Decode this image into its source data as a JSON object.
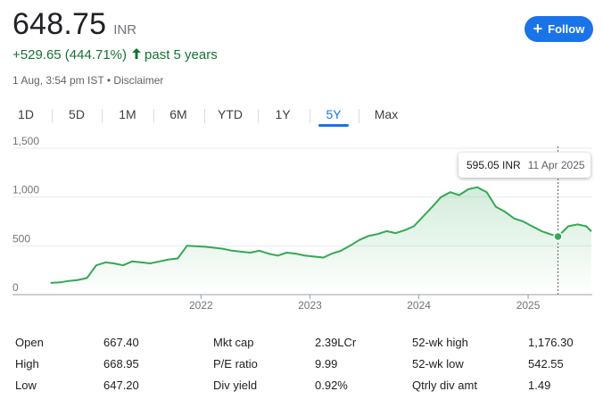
{
  "header": {
    "price": "648.75",
    "currency": "INR",
    "change": "+529.65 (444.71%)",
    "period": "past 5 years",
    "timestamp": "1 Aug, 3:54 pm IST",
    "separator": "•",
    "disclaimer": "Disclaimer",
    "follow_label": "Follow",
    "colors": {
      "positive": "#137333",
      "accent": "#1a73e8"
    }
  },
  "tabs": [
    {
      "label": "1D"
    },
    {
      "label": "5D"
    },
    {
      "label": "1M"
    },
    {
      "label": "6M"
    },
    {
      "label": "YTD"
    },
    {
      "label": "1Y"
    },
    {
      "label": "5Y",
      "active": true
    },
    {
      "label": "Max"
    }
  ],
  "tooltip": {
    "value": "595.05 INR",
    "date": "11 Apr 2025"
  },
  "chart_data": {
    "type": "line",
    "title": "",
    "xlabel": "",
    "ylabel": "",
    "x_ticks": [
      "2022",
      "2023",
      "2024",
      "2025"
    ],
    "y_ticks": [
      "0",
      "500",
      "1,000",
      "1,500"
    ],
    "ylim": [
      0,
      1500
    ],
    "xlim": [
      "2020-08-01",
      "2025-08-01"
    ],
    "grid": "horizontal",
    "line_color": "#34a853",
    "x": [
      "2020-08",
      "2020-09",
      "2020-10",
      "2020-11",
      "2020-12",
      "2021-01",
      "2021-02",
      "2021-03",
      "2021-04",
      "2021-05",
      "2021-06",
      "2021-07",
      "2021-08",
      "2021-09",
      "2021-10",
      "2021-11",
      "2022-01",
      "2022-02",
      "2022-03",
      "2022-04",
      "2022-05",
      "2022-06",
      "2022-07",
      "2022-08",
      "2022-09",
      "2022-10",
      "2022-11",
      "2022-12",
      "2023-01",
      "2023-02",
      "2023-03",
      "2023-04",
      "2023-05",
      "2023-06",
      "2023-07",
      "2023-08",
      "2023-09",
      "2023-10",
      "2023-11",
      "2023-12",
      "2024-01",
      "2024-02",
      "2024-03",
      "2024-04",
      "2024-05",
      "2024-06",
      "2024-07",
      "2024-08",
      "2024-09",
      "2024-10",
      "2024-11",
      "2024-12",
      "2025-01",
      "2025-02",
      "2025-03",
      "2025-04-11",
      "2025-05",
      "2025-06",
      "2025-07",
      "2025-08-01"
    ],
    "values": [
      120,
      125,
      140,
      150,
      170,
      300,
      330,
      320,
      300,
      340,
      330,
      320,
      340,
      360,
      370,
      500,
      490,
      480,
      470,
      450,
      440,
      430,
      450,
      420,
      400,
      430,
      420,
      400,
      390,
      380,
      420,
      450,
      500,
      560,
      600,
      620,
      650,
      630,
      660,
      700,
      800,
      900,
      1000,
      1050,
      1020,
      1080,
      1100,
      1050,
      900,
      850,
      780,
      750,
      700,
      650,
      620,
      595.05,
      700,
      720,
      700,
      648.75
    ],
    "highlight": {
      "x": "2025-04-11",
      "value": 595.05
    }
  },
  "stats": {
    "col1": [
      {
        "label": "Open",
        "value": "667.40"
      },
      {
        "label": "High",
        "value": "668.95"
      },
      {
        "label": "Low",
        "value": "647.20"
      }
    ],
    "col2": [
      {
        "label": "Mkt cap",
        "value": "2.39LCr"
      },
      {
        "label": "P/E ratio",
        "value": "9.99"
      },
      {
        "label": "Div yield",
        "value": "0.92%"
      }
    ],
    "col3": [
      {
        "label": "52-wk high",
        "value": "1,176.30"
      },
      {
        "label": "52-wk low",
        "value": "542.55"
      },
      {
        "label": "Qtrly div amt",
        "value": "1.49"
      }
    ]
  }
}
